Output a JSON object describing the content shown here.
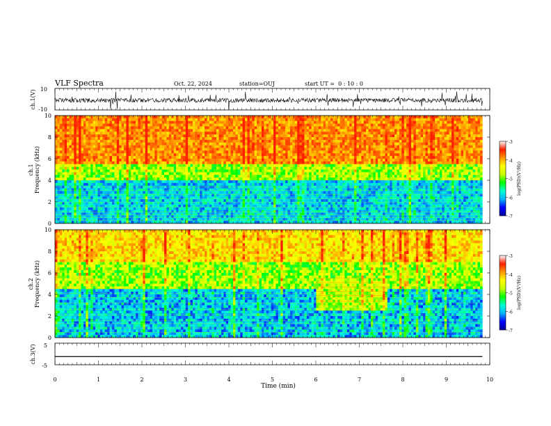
{
  "header": {
    "title": "VLF Spectra",
    "date": "Oct. 22, 2024",
    "station": "station=OUJ",
    "start": "start UT =  0 : 10 : 0"
  },
  "colorbar": {
    "label": "log(PSD)(V²/Hz)",
    "ticks": [
      "-3",
      "-4",
      "-5",
      "-6",
      "-7"
    ],
    "stops": [
      "#00009a",
      "#0000ff",
      "#00b4ff",
      "#00ffd2",
      "#00ff00",
      "#c8ff00",
      "#ffff00",
      "#ff9600",
      "#ff1e00",
      "#ffffff"
    ]
  },
  "chart_data": [
    {
      "type": "line",
      "name": "ch.1 waveform",
      "ylabel": "ch.1(V)",
      "ylim": [
        -10,
        10
      ],
      "yticks": [
        "10",
        "-10"
      ],
      "xlim": [
        0,
        10
      ],
      "description_values": "noisy signal near -1 V with spikes"
    },
    {
      "type": "heatmap",
      "name": "ch.1 spectrogram",
      "ylabel": [
        "ch.1",
        "Frequency (kHz)"
      ],
      "ylim": [
        0,
        10
      ],
      "yticks": [
        "0",
        "2",
        "4",
        "6",
        "8",
        "10"
      ],
      "xlim": [
        0,
        10
      ],
      "clim": [
        -7,
        -3
      ],
      "data_end_min": 9.83
    },
    {
      "type": "heatmap",
      "name": "ch.2 spectrogram",
      "ylabel": [
        "ch.2",
        "Frequency (kHz)"
      ],
      "ylim": [
        0,
        10
      ],
      "yticks": [
        "0",
        "2",
        "4",
        "6",
        "8",
        "10"
      ],
      "xlim": [
        0,
        10
      ],
      "clim": [
        -7,
        -3
      ],
      "data_end_min": 9.83
    },
    {
      "type": "line",
      "name": "ch.3 waveform",
      "ylabel": "ch.3(V)",
      "ylim": [
        -5,
        5
      ],
      "yticks": [
        "5",
        "-5"
      ],
      "xlim": [
        0,
        10
      ],
      "x": [
        0,
        9.83
      ],
      "y": [
        -1.2,
        -1.2
      ]
    }
  ],
  "xaxis": {
    "label": "Time (min)",
    "ticks": [
      "0",
      "1",
      "2",
      "3",
      "4",
      "5",
      "6",
      "7",
      "8",
      "9",
      "10"
    ]
  }
}
